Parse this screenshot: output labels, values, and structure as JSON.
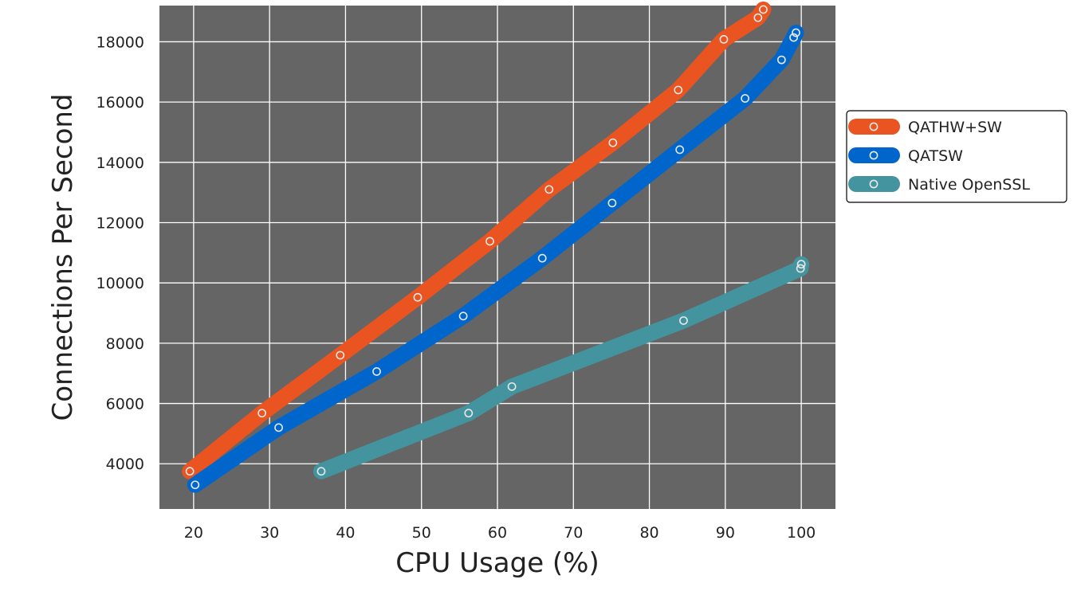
{
  "chart_data": {
    "type": "line",
    "title": "",
    "xlabel": "CPU Usage (%)",
    "ylabel": "Connections Per Second",
    "xlim": [
      15.5,
      104.5
    ],
    "ylim": [
      2500,
      19200
    ],
    "xticks": [
      20,
      30,
      40,
      50,
      60,
      70,
      80,
      90,
      100
    ],
    "yticks": [
      4000,
      6000,
      8000,
      10000,
      12000,
      14000,
      16000,
      18000
    ],
    "grid": true,
    "background": "#656565",
    "legend_position": "right",
    "series": [
      {
        "name": "QATHW+SW",
        "color": "#e95420",
        "points": [
          [
            19.5,
            3750
          ],
          [
            29,
            5680
          ],
          [
            39.3,
            7600
          ],
          [
            49.5,
            9520
          ],
          [
            59,
            11380
          ],
          [
            66.8,
            13100
          ],
          [
            75.2,
            14650
          ],
          [
            83.8,
            16400
          ],
          [
            89.8,
            18080
          ],
          [
            94.3,
            18800
          ],
          [
            95,
            19070
          ]
        ]
      },
      {
        "name": "QATSW",
        "color": "#0066cc",
        "points": [
          [
            20.2,
            3300
          ],
          [
            31.2,
            5200
          ],
          [
            44.1,
            7060
          ],
          [
            55.5,
            8900
          ],
          [
            65.9,
            10820
          ],
          [
            75.1,
            12650
          ],
          [
            84,
            14420
          ],
          [
            92.6,
            16120
          ],
          [
            97.4,
            17400
          ],
          [
            99,
            18140
          ],
          [
            99.3,
            18300
          ]
        ]
      },
      {
        "name": "Native OpenSSL",
        "color": "#43949e",
        "points": [
          [
            36.8,
            3750
          ],
          [
            56.2,
            5680
          ],
          [
            61.9,
            6560
          ],
          [
            84.5,
            8750
          ],
          [
            99.9,
            10480
          ],
          [
            100,
            10620
          ]
        ]
      }
    ]
  }
}
